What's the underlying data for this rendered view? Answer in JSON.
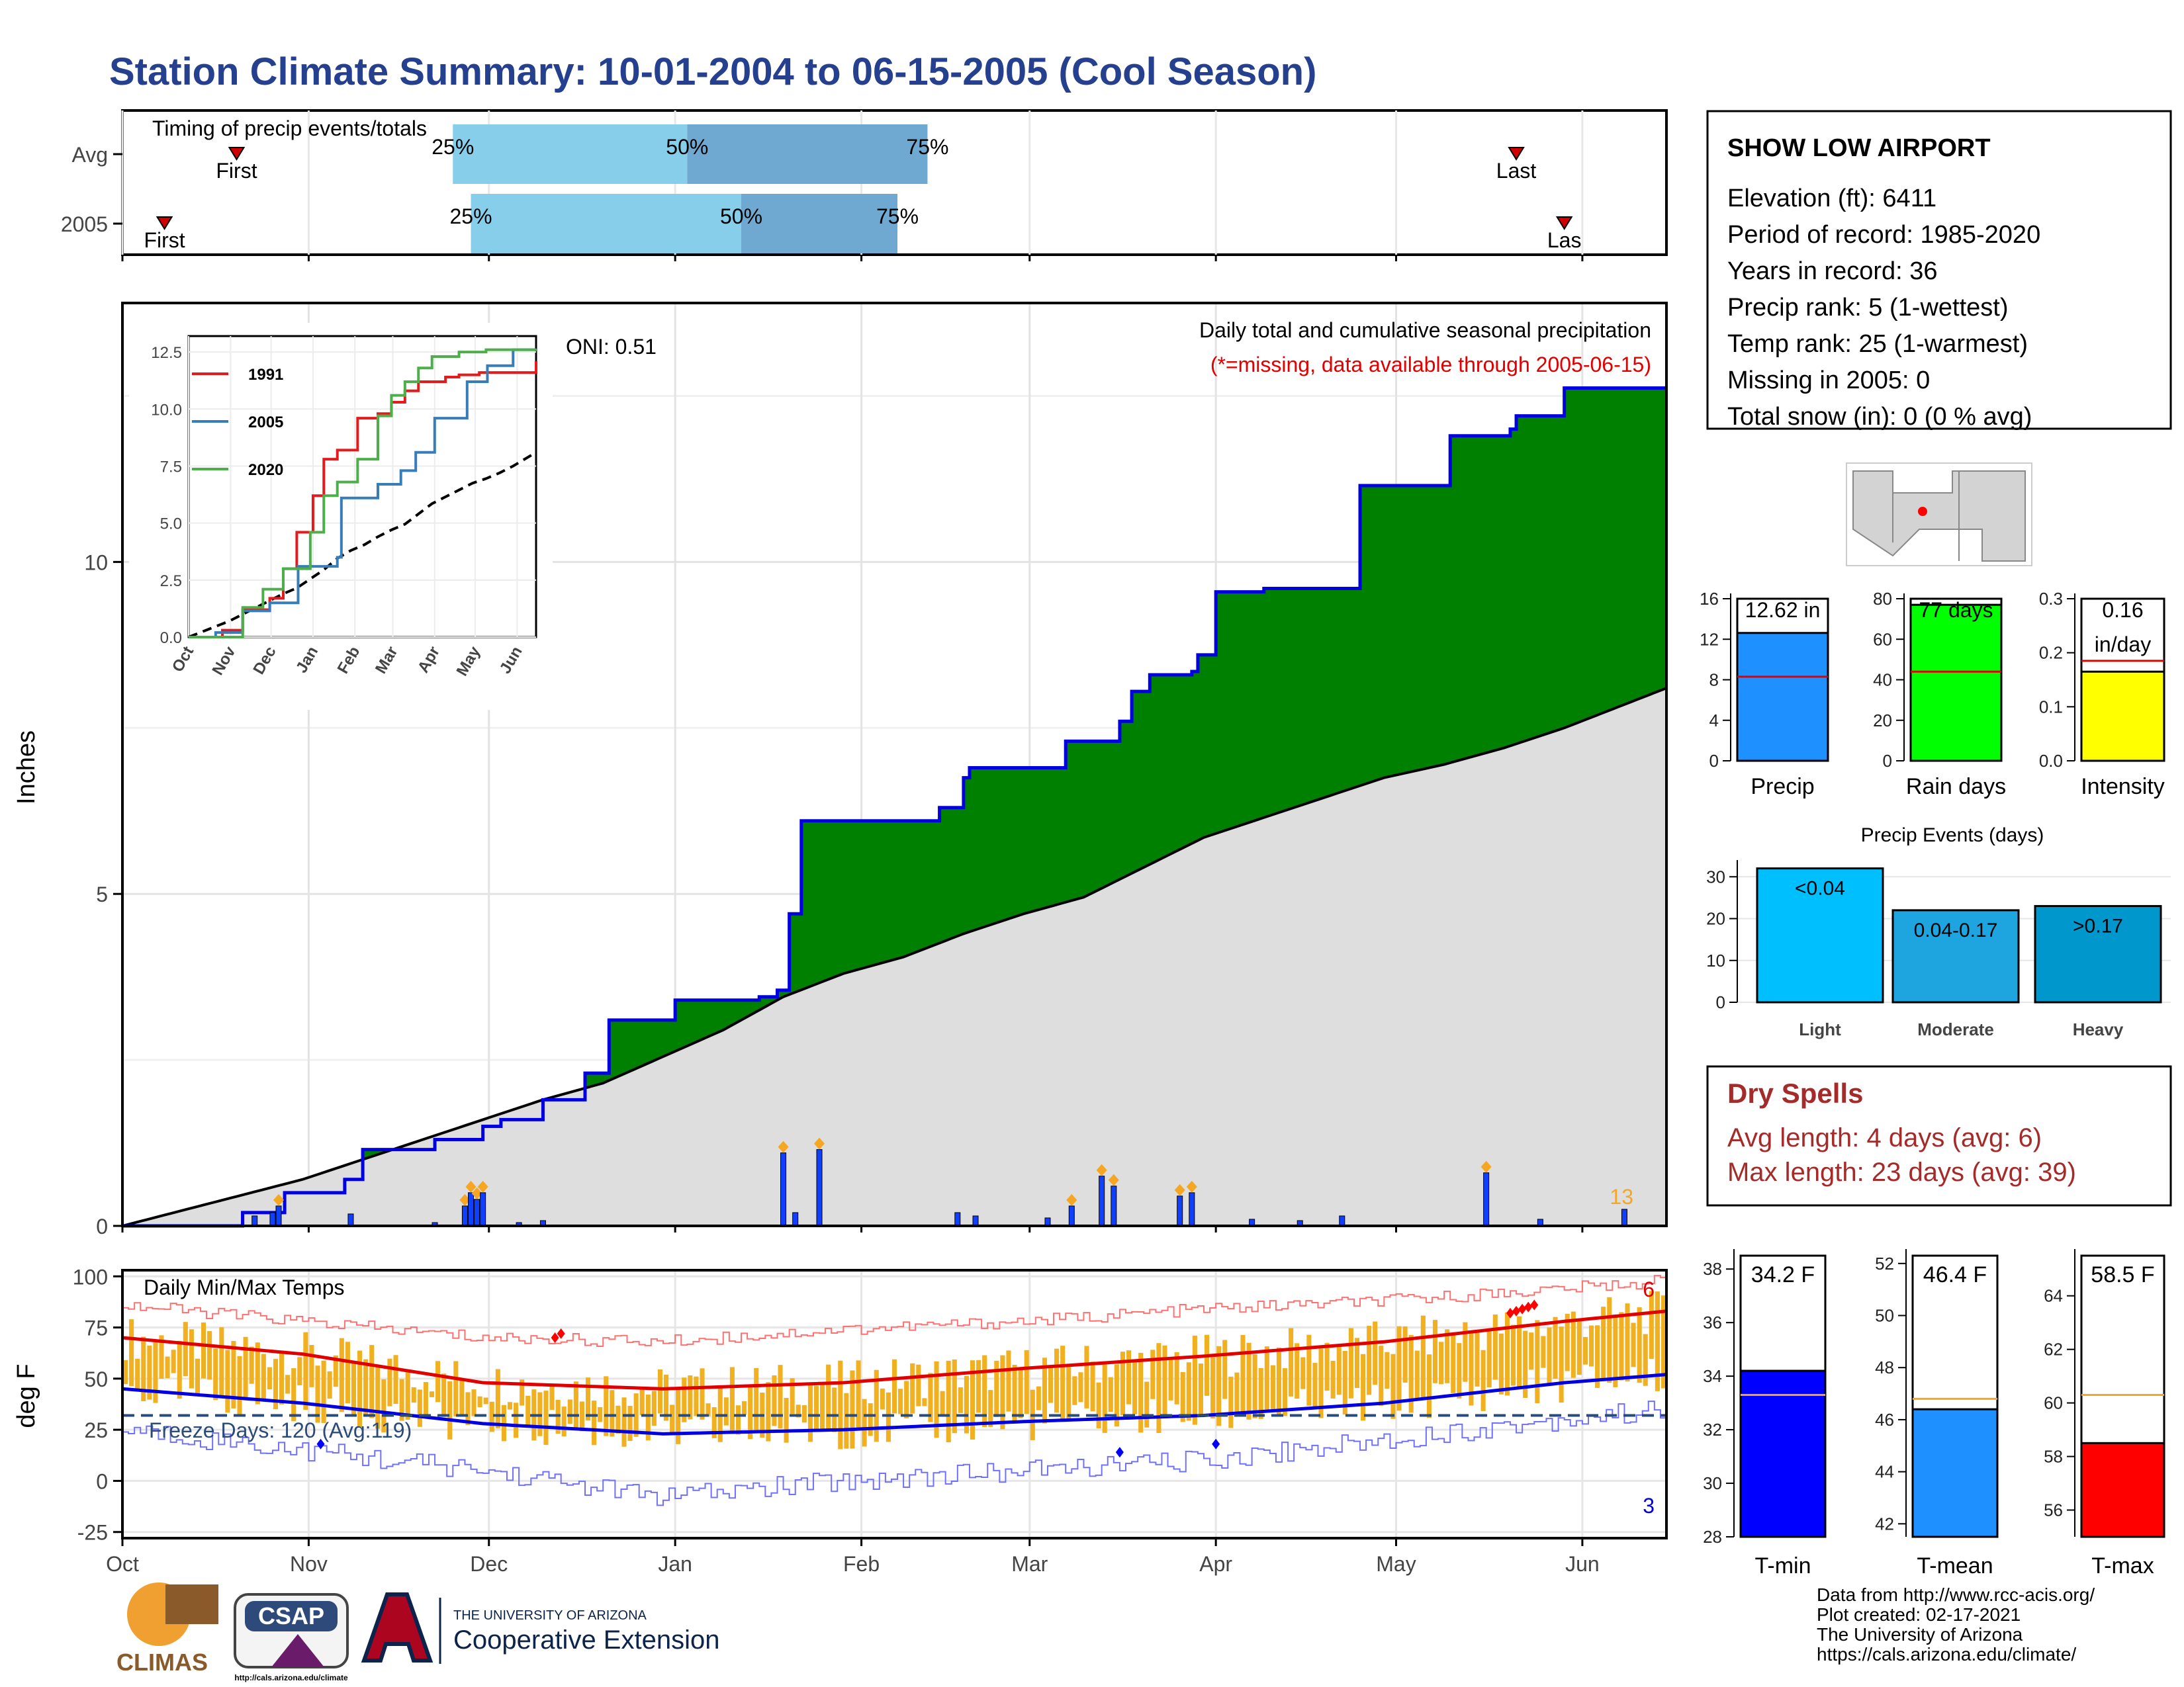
{
  "title": "Station Climate Summary: 10-01-2004 to 06-15-2005 (Cool Season)",
  "station": {
    "name": "SHOW LOW AIRPORT",
    "lines": [
      "Elevation (ft): 6411",
      "Period of record: 1985-2020",
      "Years in record: 36",
      "Precip rank: 5 (1-wettest)",
      "Temp rank: 25 (1-warmest)",
      "Missing in 2005: 0",
      "Total snow (in): 0 (0 % avg)"
    ]
  },
  "timing": {
    "title": "Timing of precip events/totals",
    "rows": [
      {
        "label": "Avg",
        "first": "First",
        "last": "Last",
        "p25": "25%",
        "p50": "50%",
        "p75": "75%",
        "first_day": 19,
        "last_day": 232,
        "d25": 55,
        "d50": 94,
        "d75": 134
      },
      {
        "label": "2005",
        "first": "First",
        "last": "Las",
        "p25": "25%",
        "p50": "50%",
        "p75": "75%",
        "first_day": 7,
        "last_day": 240,
        "d25": 58,
        "d50": 103,
        "d75": 129
      }
    ]
  },
  "main": {
    "ylabel": "Inches",
    "annot_title": "Daily total and cumulative seasonal precipitation",
    "annot_missing": "(*=missing, data available through 2005-06-15)",
    "oni": "ONI: 0.51",
    "count_label": "13",
    "yticks": [
      "0",
      "5",
      "10"
    ]
  },
  "inset": {
    "legend": [
      "1991",
      "2005",
      "2020"
    ],
    "yticks": [
      "0.0",
      "2.5",
      "5.0",
      "7.5",
      "10.0",
      "12.5"
    ],
    "xticks": [
      "Oct",
      "Nov",
      "Dec",
      "Jan",
      "Feb",
      "Mar",
      "Apr",
      "May",
      "Jun"
    ]
  },
  "temps": {
    "title": "Daily Min/Max Temps",
    "ylabel": "deg F",
    "freeze": "Freeze Days: 120 (Avg:119)",
    "count_hi": "6",
    "count_lo": "3",
    "yticks": [
      "-25",
      "0",
      "25",
      "50",
      "75",
      "100"
    ]
  },
  "xticks": [
    "Oct",
    "Nov",
    "Dec",
    "Jan",
    "Feb",
    "Mar",
    "Apr",
    "May",
    "Jun"
  ],
  "minibars": [
    {
      "label": "Precip",
      "value_text": "12.62 in",
      "value": 12.62,
      "avg": 8.3,
      "ymax": 16,
      "yticks": [
        "0",
        "4",
        "8",
        "12",
        "16"
      ],
      "color": "#1e90ff"
    },
    {
      "label": "Rain days",
      "value_text": "77 days",
      "value": 77,
      "avg": 44,
      "ymax": 80,
      "yticks": [
        "0",
        "20",
        "40",
        "60",
        "80"
      ],
      "color": "#00ff00"
    },
    {
      "label": "Intensity",
      "value_text": "0.16",
      "value_text2": "in/day",
      "value": 0.165,
      "avg": 0.185,
      "ymax": 0.3,
      "yticks": [
        "0.0",
        "0.1",
        "0.2",
        "0.3"
      ],
      "color": "#ffff00"
    }
  ],
  "events": {
    "title": "Precip Events (days)",
    "categories": [
      "Light",
      "Moderate",
      "Heavy"
    ],
    "labels": [
      "<0.04",
      "0.04-0.17",
      ">0.17"
    ],
    "values": [
      32,
      22,
      23
    ],
    "yticks": [
      "0",
      "10",
      "20",
      "30"
    ],
    "colors": [
      "#00bfff",
      "#1ea5e0",
      "#0098cc"
    ]
  },
  "dry": {
    "title": "Dry Spells",
    "avg": "Avg length: 4 days (avg: 6)",
    "max": "Max length: 23 days (avg: 39)"
  },
  "tbars": [
    {
      "label": "T-min",
      "value_text": "34.2 F",
      "value": 34.2,
      "avg": 33.3,
      "ymin": 28,
      "ymax": 38.5,
      "yticks": [
        "28",
        "30",
        "32",
        "34",
        "36",
        "38"
      ],
      "color": "#0000ff"
    },
    {
      "label": "T-mean",
      "value_text": "46.4 F",
      "value": 46.4,
      "avg": 46.8,
      "ymin": 41.5,
      "ymax": 52.3,
      "yticks": [
        "42",
        "44",
        "46",
        "48",
        "50",
        "52"
      ],
      "color": "#1e90ff"
    },
    {
      "label": "T-max",
      "value_text": "58.5 F",
      "value": 58.5,
      "avg": 60.3,
      "ymin": 55,
      "ymax": 65.5,
      "yticks": [
        "56",
        "58",
        "60",
        "62",
        "64"
      ],
      "color": "#ff0000"
    }
  ],
  "footer": [
    "Data from http://www.rcc-acis.org/",
    "Plot created: 02-17-2021",
    "The University of Arizona",
    "https://cals.arizona.edu/climate/"
  ],
  "logos": {
    "climas": "CLIMAS",
    "csap": "CSAP",
    "csap_url": "http://cals.arizona.edu/climate",
    "ua_top": "THE UNIVERSITY OF ARIZONA",
    "ua_bottom": "Cooperative Extension"
  },
  "chart_data": [
    {
      "type": "area",
      "title": "Daily total and cumulative seasonal precipitation",
      "ylabel": "Inches",
      "x_unit": "day of season (0 = Oct 1 2004, 257 = Jun 15 2005)",
      "xlim": [
        0,
        257
      ],
      "ylim": [
        0,
        13.9
      ],
      "series": [
        {
          "name": "2005 cumulative",
          "x": [
            0,
            20,
            27,
            37,
            40,
            52,
            60,
            63,
            70,
            77,
            81,
            92,
            106,
            109,
            111,
            113,
            125,
            136,
            140,
            141,
            150,
            157,
            166,
            168,
            171,
            178,
            179,
            182,
            190,
            206,
            221,
            231,
            232,
            240,
            257
          ],
          "values": [
            0,
            0.2,
            0.5,
            0.7,
            1.15,
            1.3,
            1.5,
            1.6,
            1.9,
            2.3,
            3.1,
            3.4,
            3.45,
            3.55,
            4.7,
            6.1,
            6.1,
            6.3,
            6.75,
            6.9,
            6.9,
            7.3,
            7.6,
            8.05,
            8.3,
            8.35,
            8.6,
            9.55,
            9.6,
            11.15,
            11.9,
            12.0,
            12.2,
            12.62,
            12.62
          ]
        },
        {
          "name": "Avg cumulative",
          "x": [
            0,
            30,
            50,
            60,
            70,
            80,
            90,
            100,
            110,
            120,
            130,
            140,
            150,
            160,
            170,
            180,
            190,
            200,
            210,
            220,
            230,
            240,
            257
          ],
          "values": [
            0,
            0.7,
            1.3,
            1.6,
            1.9,
            2.15,
            2.55,
            2.95,
            3.45,
            3.8,
            4.05,
            4.4,
            4.7,
            4.95,
            5.4,
            5.85,
            6.15,
            6.45,
            6.75,
            6.95,
            7.2,
            7.5,
            8.1
          ]
        }
      ],
      "daily": [
        {
          "x": 22,
          "y": 0.15
        },
        {
          "x": 25,
          "y": 0.2
        },
        {
          "x": 26,
          "y": 0.3
        },
        {
          "x": 38,
          "y": 0.18
        },
        {
          "x": 52,
          "y": 0.05
        },
        {
          "x": 57,
          "y": 0.3
        },
        {
          "x": 58,
          "y": 0.5
        },
        {
          "x": 59,
          "y": 0.4
        },
        {
          "x": 60,
          "y": 0.5
        },
        {
          "x": 66,
          "y": 0.05
        },
        {
          "x": 70,
          "y": 0.08
        },
        {
          "x": 110,
          "y": 1.1
        },
        {
          "x": 112,
          "y": 0.2
        },
        {
          "x": 116,
          "y": 1.15
        },
        {
          "x": 139,
          "y": 0.2
        },
        {
          "x": 142,
          "y": 0.15
        },
        {
          "x": 154,
          "y": 0.12
        },
        {
          "x": 158,
          "y": 0.3
        },
        {
          "x": 163,
          "y": 0.75
        },
        {
          "x": 165,
          "y": 0.6
        },
        {
          "x": 176,
          "y": 0.45
        },
        {
          "x": 178,
          "y": 0.5
        },
        {
          "x": 188,
          "y": 0.1
        },
        {
          "x": 196,
          "y": 0.08
        },
        {
          "x": 203,
          "y": 0.15
        },
        {
          "x": 227,
          "y": 0.8
        },
        {
          "x": 236,
          "y": 0.1
        },
        {
          "x": 250,
          "y": 0.25
        }
      ]
    },
    {
      "type": "line",
      "xlim": [
        0,
        257
      ],
      "ylim": [
        -28,
        103
      ],
      "series": [
        {
          "name": "Avg max",
          "x": [
            0,
            30,
            60,
            90,
            120,
            150,
            180,
            210,
            240,
            257
          ],
          "values": [
            70,
            62,
            48,
            45,
            48,
            55,
            61,
            68,
            78,
            83
          ]
        },
        {
          "name": "Avg min",
          "x": [
            0,
            30,
            60,
            90,
            120,
            150,
            180,
            210,
            240,
            257
          ],
          "values": [
            45,
            38,
            28,
            23,
            25,
            29,
            32,
            38,
            48,
            52
          ]
        },
        {
          "name": "Record high",
          "x": [
            0,
            30,
            60,
            90,
            120,
            150,
            180,
            210,
            240,
            257
          ],
          "values": [
            86,
            78,
            70,
            68,
            74,
            78,
            84,
            88,
            94,
            98
          ]
        },
        {
          "name": "Record low",
          "x": [
            0,
            30,
            60,
            90,
            120,
            150,
            180,
            210,
            240,
            257
          ],
          "values": [
            25,
            15,
            5,
            -8,
            0,
            5,
            10,
            20,
            30,
            35
          ]
        },
        {
          "name": "Freeze line",
          "x": [
            0,
            257
          ],
          "values": [
            32,
            32
          ]
        }
      ]
    }
  ]
}
